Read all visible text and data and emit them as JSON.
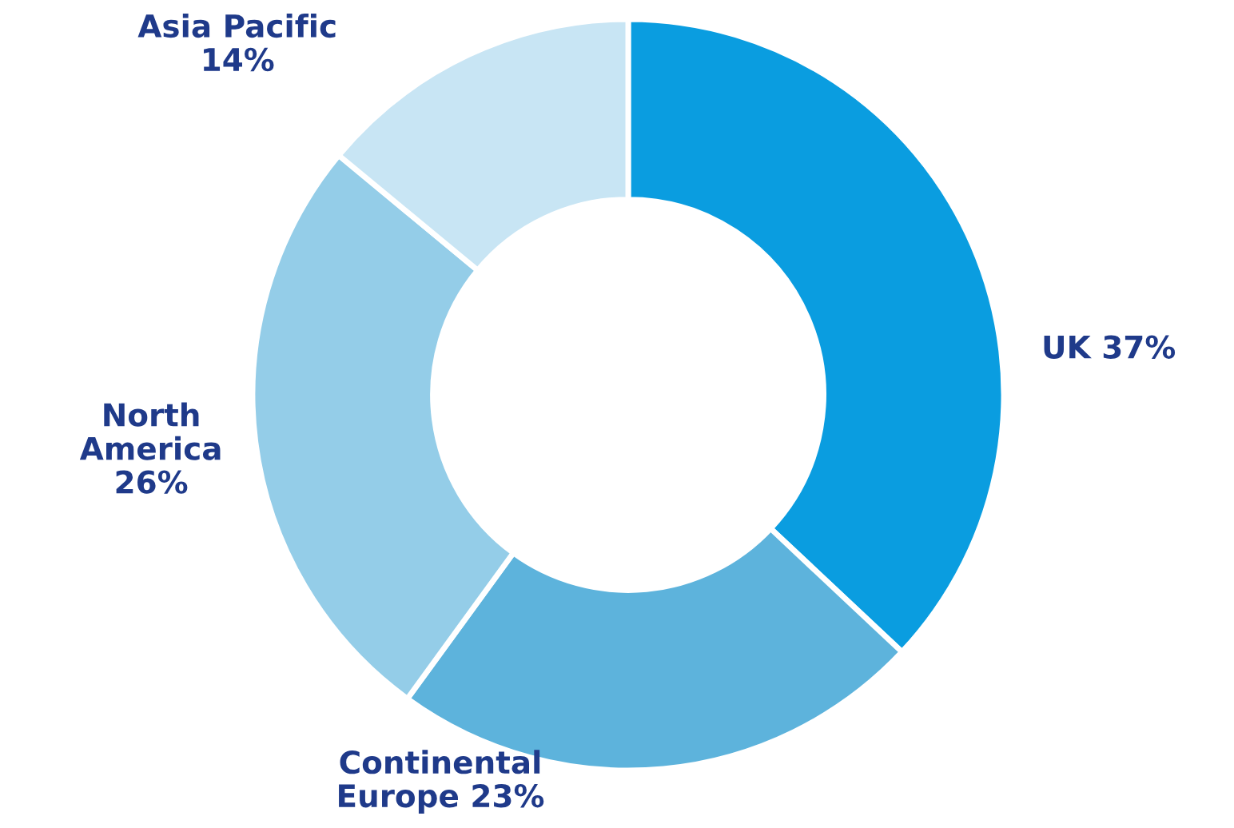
{
  "chart_data": {
    "type": "donut",
    "categories": [
      "UK",
      "Continental\nEurope",
      "North\nAmerica",
      "Asia Pacific"
    ],
    "values": [
      37,
      23,
      26,
      14
    ],
    "value_labels": [
      "37%",
      "23%",
      "26%",
      "14%"
    ],
    "colors": [
      "#0a9de0",
      "#5db3dc",
      "#94cde8",
      "#c8e5f4"
    ],
    "legend": false
  }
}
